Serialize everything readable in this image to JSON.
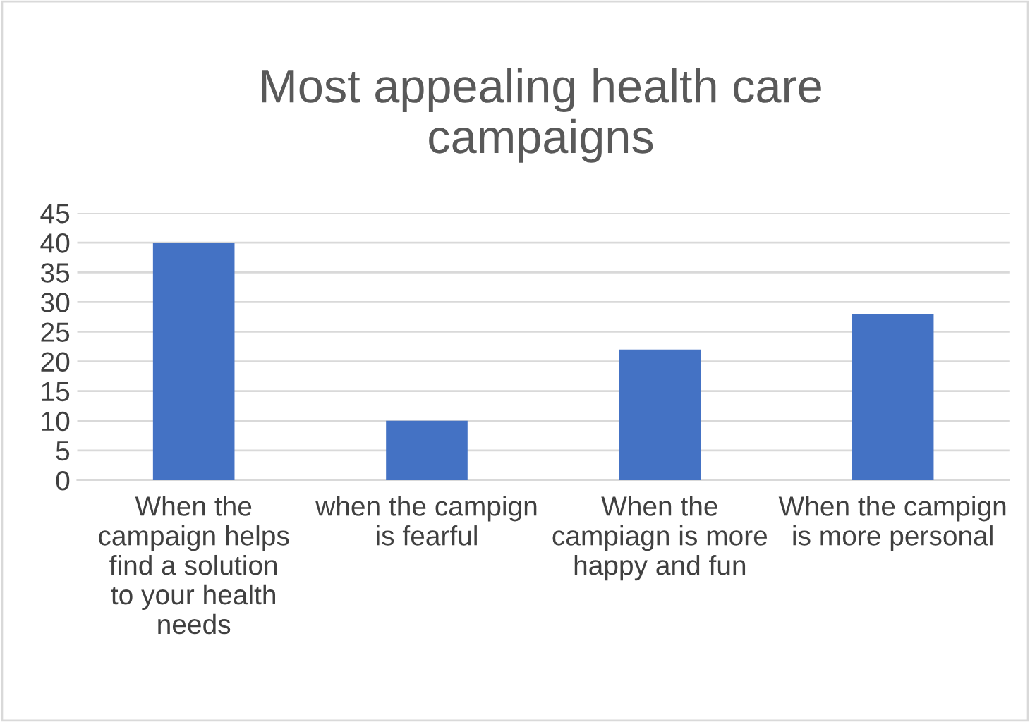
{
  "chart_data": {
    "type": "bar",
    "title": "Most appealing health care campaigns",
    "categories": [
      "When the campaign helps find a solution to your health needs",
      "when the campign is fearful",
      "When the campiagn is more happy and fun",
      "When the campign is more personal"
    ],
    "values": [
      40,
      10,
      22,
      28
    ],
    "color": "#4472c4",
    "ylim": [
      0,
      45
    ],
    "yticks": [
      0,
      5,
      10,
      15,
      20,
      25,
      30,
      35,
      40,
      45
    ],
    "grid": "y"
  }
}
